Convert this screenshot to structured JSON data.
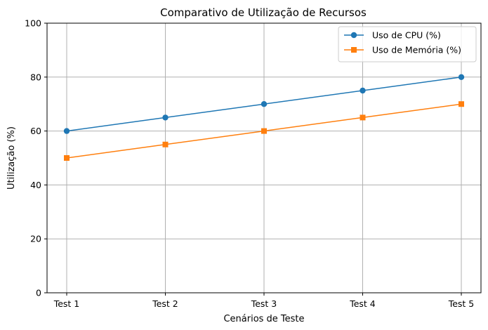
{
  "chart_data": {
    "type": "line",
    "title": "Comparativo de Utilização de Recursos",
    "xlabel": "Cenários de Teste",
    "ylabel": "Utilização (%)",
    "categories": [
      "Test 1",
      "Test 2",
      "Test 3",
      "Test 4",
      "Test 5"
    ],
    "ylim": [
      0,
      100
    ],
    "yticks": [
      0,
      20,
      40,
      60,
      80,
      100
    ],
    "grid": true,
    "legend_position": "top-right",
    "series": [
      {
        "name": "Uso de CPU (%)",
        "values": [
          60,
          65,
          70,
          75,
          80
        ],
        "color": "#1f77b4",
        "marker": "circle"
      },
      {
        "name": "Uso de Memória (%)",
        "values": [
          50,
          55,
          60,
          65,
          70
        ],
        "color": "#ff7f0e",
        "marker": "square"
      }
    ]
  }
}
